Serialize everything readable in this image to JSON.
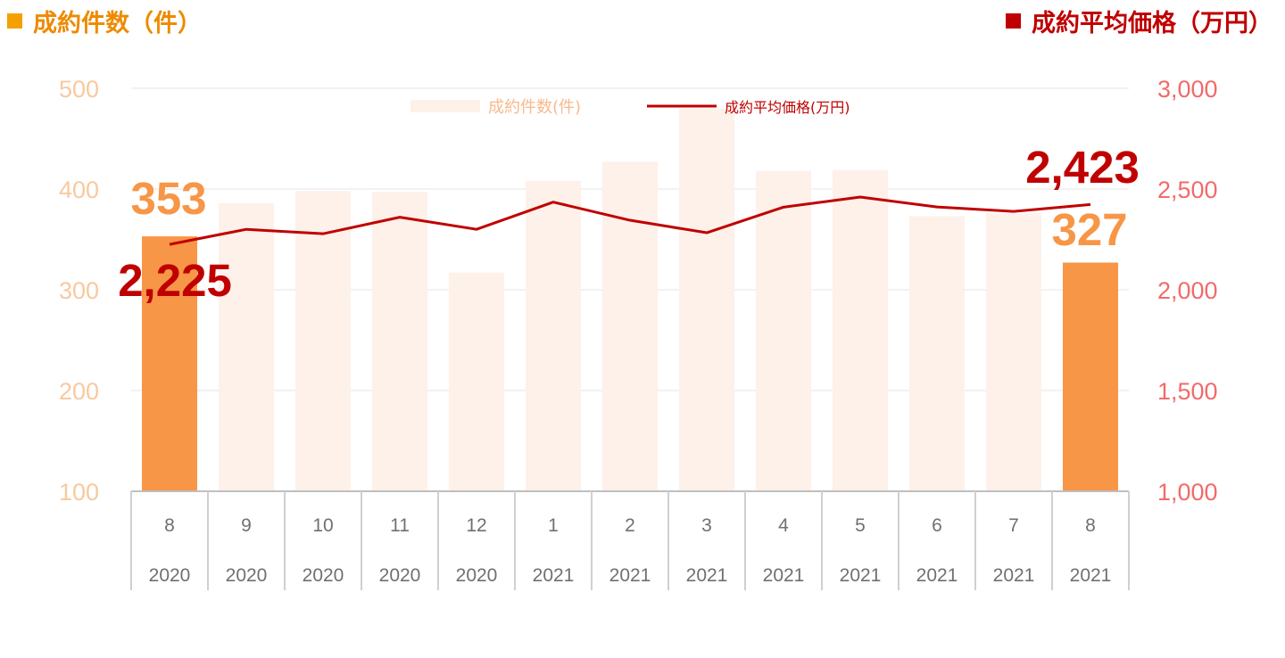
{
  "header": {
    "left_title": "成約件数（件）",
    "left_color": "#f5a000",
    "right_title": "成約平均価格（万円）",
    "right_color": "#c00000"
  },
  "legend": {
    "bar_label": "成約件数(件)",
    "line_label": "成約平均価格(万円)",
    "placement": "top-center"
  },
  "callouts": {
    "first_count": "353",
    "first_price": "2,225",
    "last_count": "327",
    "last_price": "2,423"
  },
  "chart_data": {
    "type": "bar+line",
    "categories": [
      "8",
      "9",
      "10",
      "11",
      "12",
      "1",
      "2",
      "3",
      "4",
      "5",
      "6",
      "7",
      "8"
    ],
    "years": [
      "2020",
      "2020",
      "2020",
      "2020",
      "2020",
      "2021",
      "2021",
      "2021",
      "2021",
      "2021",
      "2021",
      "2021",
      "2021"
    ],
    "series": [
      {
        "name": "成約件数(件)",
        "type": "bar",
        "axis": "left",
        "values": [
          353,
          386,
          398,
          397,
          317,
          408,
          427,
          480,
          418,
          419,
          373,
          376,
          327
        ],
        "color": "#f79646",
        "muted_color": "#fdf1e9"
      },
      {
        "name": "成約平均価格(万円)",
        "type": "line",
        "axis": "right",
        "values": [
          2225,
          2300,
          2278,
          2360,
          2300,
          2435,
          2345,
          2283,
          2410,
          2460,
          2411,
          2389,
          2423
        ],
        "color": "#c00000"
      }
    ],
    "y_left": {
      "ylim": [
        100,
        500
      ],
      "ticks": [
        "100",
        "200",
        "300",
        "400",
        "500"
      ]
    },
    "y_right": {
      "ylim": [
        1000,
        3000
      ],
      "ticks": [
        "1,000",
        "1,500",
        "2,000",
        "2,500",
        "3,000"
      ]
    },
    "grid": true
  }
}
